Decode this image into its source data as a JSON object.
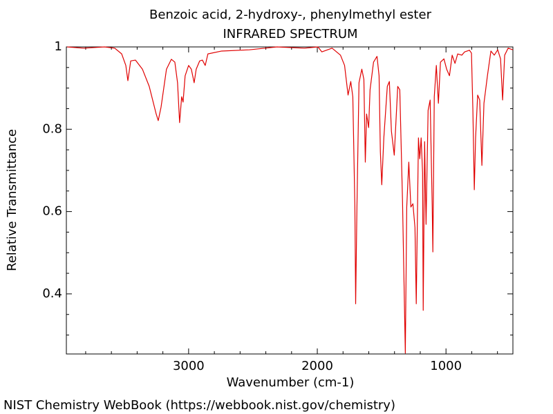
{
  "chart_data": {
    "type": "line",
    "title": "Benzoic acid, 2-hydroxy-, phenylmethyl ester",
    "subtitle": "INFRARED SPECTRUM",
    "xlabel": "Wavenumber (cm-1)",
    "ylabel": "Relative Transmittance",
    "xlim": [
      3950,
      480
    ],
    "ylim": [
      0.254,
      1
    ],
    "xticks": [
      3000,
      2000,
      1000
    ],
    "yticks": [
      0.4,
      0.6,
      0.8,
      1
    ],
    "xminorticks": [
      3800,
      3600,
      3400,
      3200,
      2800,
      2600,
      2400,
      2200,
      1800,
      1600,
      1400,
      1200,
      800,
      600
    ],
    "yminorticks": [
      0.3,
      0.35,
      0.45,
      0.5,
      0.55,
      0.65,
      0.7,
      0.75,
      0.85,
      0.9,
      0.95
    ],
    "color": "#e00000",
    "x": [
      3944,
      3815,
      3654,
      3574,
      3520,
      3488,
      3472,
      3450,
      3413,
      3359,
      3306,
      3252,
      3236,
      3214,
      3172,
      3134,
      3107,
      3086,
      3070,
      3054,
      3043,
      3027,
      3000,
      2979,
      2957,
      2941,
      2914,
      2893,
      2871,
      2850,
      2743,
      2528,
      2314,
      2100,
      1995,
      1965,
      1885,
      1820,
      1788,
      1761,
      1740,
      1724,
      1708,
      1702,
      1692,
      1676,
      1654,
      1638,
      1627,
      1617,
      1601,
      1590,
      1563,
      1536,
      1520,
      1510,
      1499,
      1483,
      1456,
      1440,
      1424,
      1402,
      1375,
      1359,
      1338,
      1316,
      1305,
      1289,
      1273,
      1257,
      1241,
      1231,
      1214,
      1204,
      1193,
      1182,
      1177,
      1166,
      1155,
      1139,
      1123,
      1107,
      1102,
      1091,
      1075,
      1059,
      1043,
      1016,
      995,
      973,
      952,
      930,
      909,
      877,
      855,
      818,
      802,
      791,
      780,
      770,
      754,
      738,
      721,
      705,
      678,
      651,
      625,
      598,
      576,
      560,
      544,
      517,
      480
    ],
    "values": [
      1.0,
      0.997,
      1.0,
      0.997,
      0.983,
      0.955,
      0.918,
      0.966,
      0.968,
      0.946,
      0.904,
      0.837,
      0.821,
      0.854,
      0.946,
      0.97,
      0.963,
      0.913,
      0.816,
      0.879,
      0.866,
      0.93,
      0.955,
      0.946,
      0.913,
      0.946,
      0.966,
      0.968,
      0.955,
      0.983,
      0.99,
      0.993,
      1.0,
      0.997,
      1.0,
      0.988,
      0.997,
      0.98,
      0.955,
      0.883,
      0.916,
      0.879,
      0.611,
      0.376,
      0.611,
      0.913,
      0.946,
      0.921,
      0.72,
      0.837,
      0.804,
      0.896,
      0.963,
      0.977,
      0.93,
      0.745,
      0.665,
      0.779,
      0.904,
      0.916,
      0.795,
      0.737,
      0.904,
      0.896,
      0.628,
      0.256,
      0.611,
      0.72,
      0.611,
      0.619,
      0.561,
      0.376,
      0.779,
      0.728,
      0.779,
      0.695,
      0.36,
      0.77,
      0.569,
      0.846,
      0.871,
      0.611,
      0.502,
      0.879,
      0.955,
      0.863,
      0.963,
      0.971,
      0.946,
      0.93,
      0.98,
      0.96,
      0.983,
      0.98,
      0.988,
      0.992,
      0.985,
      0.846,
      0.653,
      0.779,
      0.883,
      0.871,
      0.712,
      0.863,
      0.93,
      0.99,
      0.98,
      0.993,
      0.971,
      0.871,
      0.98,
      0.997,
      0.993
    ]
  },
  "footer": "NIST Chemistry WebBook (https://webbook.nist.gov/chemistry)"
}
